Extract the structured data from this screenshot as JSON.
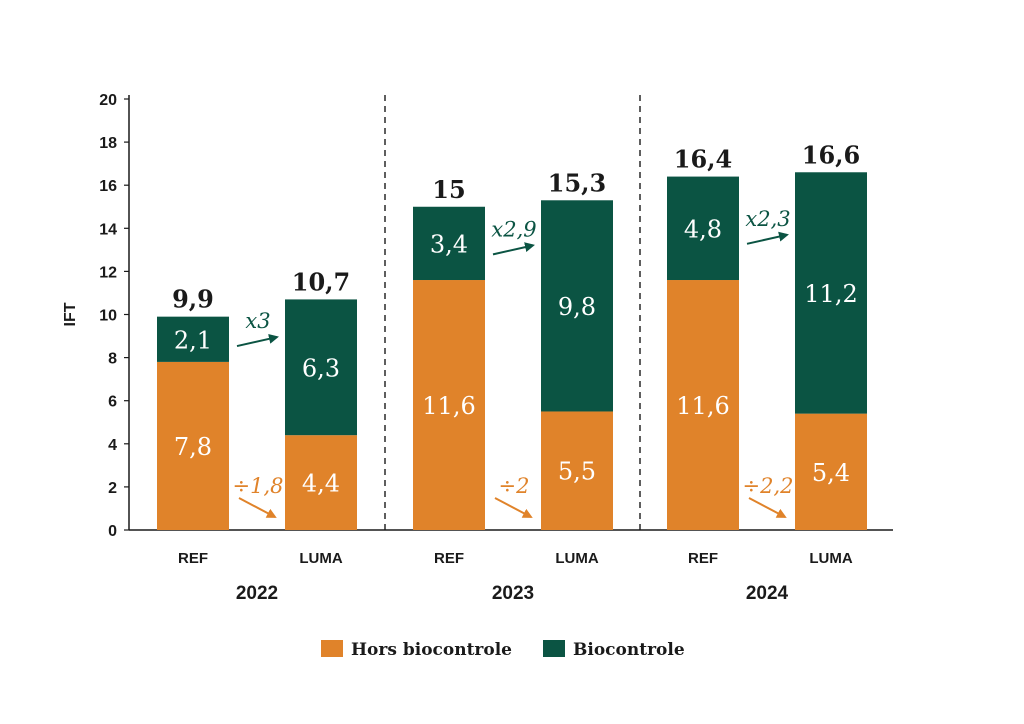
{
  "colors": {
    "hors": "#e0832a",
    "bio": "#0b5443",
    "axis": "#1a1a1a"
  },
  "chart_data": {
    "type": "bar",
    "stacked": true,
    "ylabel": "IFT",
    "ylim": [
      0,
      20
    ],
    "yticks": [
      0,
      2,
      4,
      6,
      8,
      10,
      12,
      14,
      16,
      18,
      20
    ],
    "groups": [
      {
        "year": "2022",
        "bars": [
          {
            "category": "REF",
            "hors": 7.8,
            "bio": 2.1,
            "hors_label": "7,8",
            "bio_label": "2,1",
            "total_label": "9,9"
          },
          {
            "category": "LUMA",
            "hors": 4.4,
            "bio": 6.3,
            "hors_label": "4,4",
            "bio_label": "6,3",
            "total_label": "10,7"
          }
        ],
        "bio_factor": "x3",
        "hors_factor": "÷1,8"
      },
      {
        "year": "2023",
        "bars": [
          {
            "category": "REF",
            "hors": 11.6,
            "bio": 3.4,
            "hors_label": "11,6",
            "bio_label": "3,4",
            "total_label": "15"
          },
          {
            "category": "LUMA",
            "hors": 5.5,
            "bio": 9.8,
            "hors_label": "5,5",
            "bio_label": "9,8",
            "total_label": "15,3"
          }
        ],
        "bio_factor": "x2,9",
        "hors_factor": "÷2"
      },
      {
        "year": "2024",
        "bars": [
          {
            "category": "REF",
            "hors": 11.6,
            "bio": 4.8,
            "hors_label": "11,6",
            "bio_label": "4,8",
            "total_label": "16,4"
          },
          {
            "category": "LUMA",
            "hors": 5.4,
            "bio": 11.2,
            "hors_label": "5,4",
            "bio_label": "11,2",
            "total_label": "16,6"
          }
        ],
        "bio_factor": "x2,3",
        "hors_factor": "÷2,2"
      }
    ],
    "legend": [
      {
        "key": "hors",
        "label": "Hors biocontrole"
      },
      {
        "key": "bio",
        "label": "Biocontrole"
      }
    ]
  }
}
